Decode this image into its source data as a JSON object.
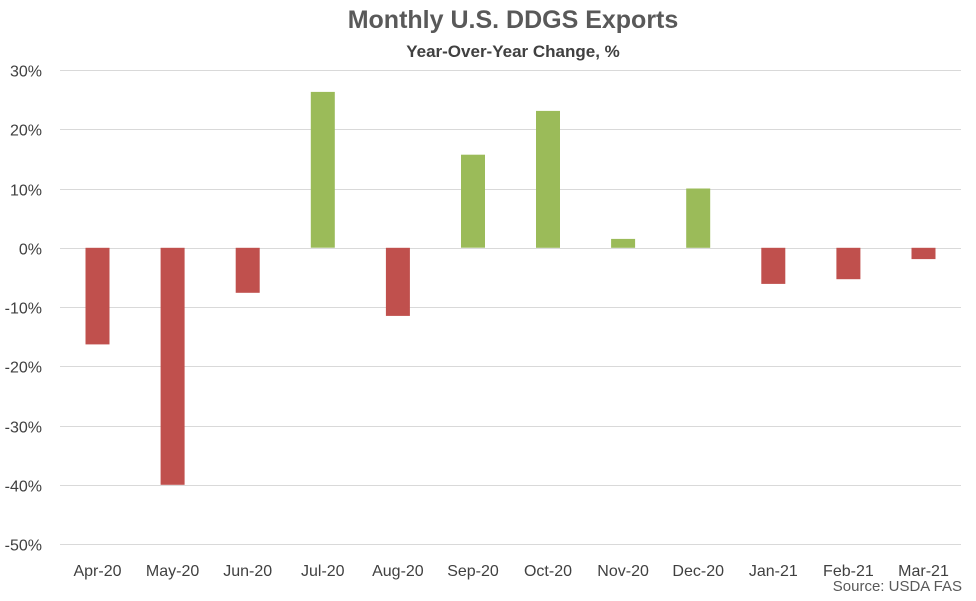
{
  "chart_data": {
    "type": "bar",
    "title": "Monthly U.S. DDGS Exports",
    "subtitle": "Year-Over-Year Change, %",
    "xlabel": "",
    "ylabel": "",
    "categories": [
      "Apr-20",
      "May-20",
      "Jun-20",
      "Jul-20",
      "Aug-20",
      "Sep-20",
      "Oct-20",
      "Nov-20",
      "Dec-20",
      "Jan-21",
      "Feb-21",
      "Mar-21"
    ],
    "values": [
      -16.3,
      -40.0,
      -7.6,
      26.3,
      -11.5,
      15.7,
      23.1,
      1.5,
      10.0,
      -6.1,
      -5.3,
      -1.9
    ],
    "ylim": [
      -50,
      30
    ],
    "yticks": [
      30,
      20,
      10,
      0,
      -10,
      -20,
      -30,
      -40,
      -50
    ],
    "ytick_labels": [
      "30%",
      "20%",
      "10%",
      "0%",
      "-10%",
      "-20%",
      "-30%",
      "-40%",
      "-50%"
    ],
    "grid": true,
    "legend": "none",
    "colors": {
      "positive": "#9bbb59",
      "negative": "#c0504d",
      "gridline": "#d9d9d9"
    },
    "source": "Source: USDA FAS"
  }
}
